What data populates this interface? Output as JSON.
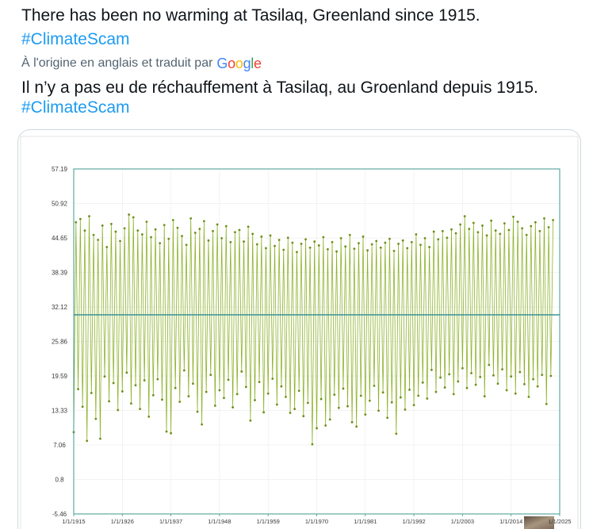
{
  "tweet": {
    "text": "There has been no warming at Tasilaq, Greenland since 1915.",
    "hashtag": "#ClimateScam"
  },
  "translation": {
    "notice": "À l'origine en anglais et traduit par",
    "provider": "Google",
    "provider_logo_colors": [
      "#4285F4",
      "#EA4335",
      "#FBBC05",
      "#4285F4",
      "#34A853",
      "#EA4335"
    ],
    "text": "Il n’y a pas eu de réchauffement à Tasilaq, au Groenland depuis 1915.",
    "hashtag": "#ClimateScam"
  },
  "colors": {
    "text": "#0f1419",
    "secondary_text": "#536471",
    "link": "#1d9bf0",
    "card_border": "#cfd9de"
  },
  "chart_data": {
    "type": "line",
    "xlim": [
      "1915-01-01",
      "2025-01-01"
    ],
    "ylim": [
      -5.46,
      57.19
    ],
    "grid": true,
    "markers": true,
    "xticks": [
      {
        "date": "1915-01-01",
        "label": "1/1/1915"
      },
      {
        "date": "1926-01-01",
        "label": "1/1/1926"
      },
      {
        "date": "1937-01-01",
        "label": "1/1/1937"
      },
      {
        "date": "1948-01-01",
        "label": "1/1/1948"
      },
      {
        "date": "1959-01-01",
        "label": "1/1/1959"
      },
      {
        "date": "1970-01-01",
        "label": "1/1/1970"
      },
      {
        "date": "1981-01-01",
        "label": "1/1/1981"
      },
      {
        "date": "1992-01-01",
        "label": "1/1/1992"
      },
      {
        "date": "2003-01-01",
        "label": "1/1/2003"
      },
      {
        "date": "2014-01-01",
        "label": "1/1/2014"
      },
      {
        "date": "2025-01-01",
        "label": "1/1/2025"
      }
    ],
    "yticks": [
      "57.19",
      "50.92",
      "44.65",
      "38.39",
      "32.12",
      "25.86",
      "19.59",
      "13.33",
      "7.06",
      "0.8",
      "-5.46"
    ],
    "series": [
      {
        "color": "#8db32c",
        "marker_color": "#6b8f18",
        "x": [
          "1915-01",
          "1915-07",
          "1916-01",
          "1916-07",
          "1917-01",
          "1917-07",
          "1918-01",
          "1918-07",
          "1919-01",
          "1919-07",
          "1920-01",
          "1920-07",
          "1921-01",
          "1921-07",
          "1922-01",
          "1922-07",
          "1923-01",
          "1923-07",
          "1924-01",
          "1924-07",
          "1925-01",
          "1925-07",
          "1926-01",
          "1926-07",
          "1927-01",
          "1927-07",
          "1928-01",
          "1928-07",
          "1929-01",
          "1929-07",
          "1930-01",
          "1930-07",
          "1931-01",
          "1931-07",
          "1932-01",
          "1932-07",
          "1933-01",
          "1933-07",
          "1934-01",
          "1934-07",
          "1935-01",
          "1935-07",
          "1936-01",
          "1936-07",
          "1937-01",
          "1937-07",
          "1938-01",
          "1938-07",
          "1939-01",
          "1939-07",
          "1940-01",
          "1940-07",
          "1941-01",
          "1941-07",
          "1942-01",
          "1942-07",
          "1943-01",
          "1943-07",
          "1944-01",
          "1944-07",
          "1945-01",
          "1945-07",
          "1946-01",
          "1946-07",
          "1947-01",
          "1947-07",
          "1948-01",
          "1948-07",
          "1949-01",
          "1949-07",
          "1950-01",
          "1950-07",
          "1951-01",
          "1951-07",
          "1952-01",
          "1952-07",
          "1953-01",
          "1953-07",
          "1954-01",
          "1954-07",
          "1955-01",
          "1955-07",
          "1956-01",
          "1956-07",
          "1957-01",
          "1957-07",
          "1958-01",
          "1958-07",
          "1959-01",
          "1959-07",
          "1960-01",
          "1960-07",
          "1961-01",
          "1961-07",
          "1962-01",
          "1962-07",
          "1963-01",
          "1963-07",
          "1964-01",
          "1964-07",
          "1965-01",
          "1965-07",
          "1966-01",
          "1966-07",
          "1967-01",
          "1967-07",
          "1968-01",
          "1968-07",
          "1969-01",
          "1969-07",
          "1970-01",
          "1970-07",
          "1971-01",
          "1971-07",
          "1972-01",
          "1972-07",
          "1973-01",
          "1973-07",
          "1974-01",
          "1974-07",
          "1975-01",
          "1975-07",
          "1976-01",
          "1976-07",
          "1977-01",
          "1977-07",
          "1978-01",
          "1978-07",
          "1979-01",
          "1979-07",
          "1980-01",
          "1980-07",
          "1981-01",
          "1981-07",
          "1982-01",
          "1982-07",
          "1983-01",
          "1983-07",
          "1984-01",
          "1984-07",
          "1985-01",
          "1985-07",
          "1986-01",
          "1986-07",
          "1987-01",
          "1987-07",
          "1988-01",
          "1988-07",
          "1989-01",
          "1989-07",
          "1990-01",
          "1990-07",
          "1991-01",
          "1991-07",
          "1992-01",
          "1992-07",
          "1993-01",
          "1993-07",
          "1994-01",
          "1994-07",
          "1995-01",
          "1995-07",
          "1996-01",
          "1996-07",
          "1997-01",
          "1997-07",
          "1998-01",
          "1998-07",
          "1999-01",
          "1999-07",
          "2000-01",
          "2000-07",
          "2001-01",
          "2001-07",
          "2002-01",
          "2002-07",
          "2003-01",
          "2003-07",
          "2004-01",
          "2004-07",
          "2005-01",
          "2005-07",
          "2006-01",
          "2006-07",
          "2007-01",
          "2007-07",
          "2008-01",
          "2008-07",
          "2009-01",
          "2009-07",
          "2010-01",
          "2010-07",
          "2011-01",
          "2011-07",
          "2012-01",
          "2012-07",
          "2013-01",
          "2013-07",
          "2014-01",
          "2014-07",
          "2015-01",
          "2015-07",
          "2016-01",
          "2016-07",
          "2017-01",
          "2017-07",
          "2018-01",
          "2018-07",
          "2019-01",
          "2019-07",
          "2020-01",
          "2020-07",
          "2021-01",
          "2021-07",
          "2022-01",
          "2022-07",
          "2023-01",
          "2023-07"
        ],
        "y": [
          9.4,
          47.5,
          17.2,
          48.1,
          14.0,
          46.0,
          7.8,
          48.6,
          16.5,
          45.2,
          11.8,
          44.3,
          8.2,
          46.9,
          19.5,
          43.0,
          15.0,
          47.2,
          18.3,
          45.8,
          13.4,
          44.1,
          16.8,
          46.4,
          20.2,
          48.9,
          14.6,
          48.4,
          17.9,
          46.0,
          13.6,
          45.3,
          18.8,
          47.6,
          12.2,
          44.8,
          16.1,
          46.2,
          19.0,
          43.7,
          15.3,
          47.0,
          9.5,
          44.5,
          9.2,
          47.9,
          17.4,
          46.5,
          14.9,
          45.0,
          20.6,
          43.4,
          15.9,
          48.2,
          18.2,
          45.6,
          13.1,
          46.3,
          10.8,
          47.7,
          16.7,
          44.2,
          19.8,
          45.9,
          14.2,
          47.1,
          17.0,
          44.6,
          15.6,
          46.8,
          18.9,
          43.9,
          13.9,
          45.7,
          16.3,
          46.1,
          20.4,
          44.0,
          17.6,
          46.7,
          11.5,
          45.4,
          15.2,
          43.5,
          18.5,
          44.9,
          13.0,
          42.8,
          16.4,
          45.1,
          19.1,
          43.2,
          14.4,
          44.3,
          17.7,
          42.5,
          15.8,
          44.7,
          12.9,
          43.8,
          13.6,
          42.1,
          16.9,
          43.6,
          12.3,
          44.4,
          14.7,
          42.9,
          7.2,
          44.0,
          10.1,
          43.3,
          15.4,
          44.8,
          10.6,
          42.6,
          11.7,
          43.9,
          16.2,
          42.2,
          13.8,
          44.6,
          17.3,
          43.1,
          14.1,
          45.2,
          11.2,
          42.7,
          10.4,
          43.7,
          16.0,
          44.9,
          12.6,
          42.4,
          15.1,
          43.5,
          17.8,
          44.1,
          13.3,
          42.9,
          16.6,
          43.8,
          12.0,
          44.5,
          14.8,
          42.3,
          9.1,
          43.6,
          15.7,
          44.2,
          13.5,
          42.8,
          17.1,
          43.9,
          14.3,
          45.3,
          16.0,
          43.4,
          18.4,
          44.6,
          15.5,
          43.0,
          20.7,
          45.8,
          16.7,
          44.4,
          19.3,
          45.9,
          17.5,
          44.7,
          19.9,
          46.2,
          16.3,
          45.5,
          18.6,
          47.1,
          21.0,
          48.6,
          17.4,
          46.3,
          20.1,
          47.4,
          18.0,
          45.7,
          19.4,
          46.9,
          15.9,
          45.1,
          21.6,
          47.8,
          19.7,
          46.0,
          18.2,
          45.4,
          20.8,
          47.3,
          17.0,
          46.1,
          19.5,
          48.5,
          16.4,
          47.6,
          20.3,
          46.4,
          18.1,
          45.2,
          15.8,
          46.8,
          19.0,
          47.5,
          17.7,
          45.9,
          19.8,
          48.2,
          14.5,
          46.6,
          19.6,
          47.9
        ]
      }
    ],
    "horizontal_line": {
      "y": 30.7,
      "color": "#2a8c94"
    },
    "frame_color": "#3f9a8c",
    "grid_color": "#ebebeb",
    "tick_label_color": "#3a3a3a"
  }
}
